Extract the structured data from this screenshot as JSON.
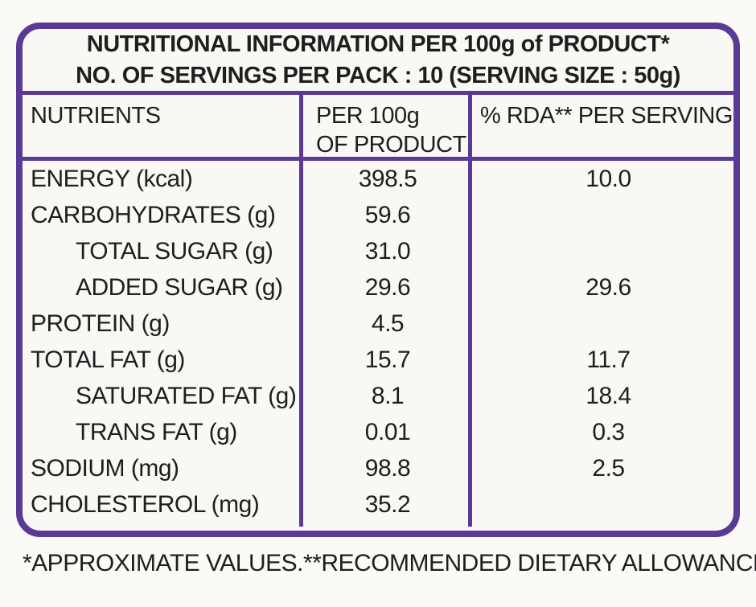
{
  "colors": {
    "border_purple": "#5B3A96",
    "text": "#1E1E1E",
    "background": "#FBFAF7"
  },
  "title": {
    "line1": "NUTRITIONAL INFORMATION PER 100g of PRODUCT*",
    "line2": "NO. OF SERVINGS PER PACK : 10 (SERVING SIZE : 50g)"
  },
  "columns": {
    "nutrients": "NUTRIENTS",
    "per_100g_line1": "PER 100g",
    "per_100g_line2": "OF PRODUCT",
    "rda_per_serving": "% RDA** PER SERVING"
  },
  "rows": [
    {
      "nutrient": "ENERGY (kcal)",
      "per_100g": "398.5",
      "rda_per_serving": "10.0"
    },
    {
      "nutrient": "CARBOHYDRATES (g)",
      "per_100g": "59.6",
      "rda_per_serving": ""
    },
    {
      "nutrient": "TOTAL SUGAR (g)",
      "per_100g": "31.0",
      "rda_per_serving": ""
    },
    {
      "nutrient": "ADDED SUGAR (g)",
      "per_100g": "29.6",
      "rda_per_serving": "29.6"
    },
    {
      "nutrient": "PROTEIN (g)",
      "per_100g": "4.5",
      "rda_per_serving": ""
    },
    {
      "nutrient": "TOTAL FAT (g)",
      "per_100g": "15.7",
      "rda_per_serving": "11.7"
    },
    {
      "nutrient": "SATURATED FAT (g)",
      "per_100g": "8.1",
      "rda_per_serving": "18.4"
    },
    {
      "nutrient": "TRANS FAT (g)",
      "per_100g": "0.01",
      "rda_per_serving": "0.3"
    },
    {
      "nutrient": "SODIUM (mg)",
      "per_100g": "98.8",
      "rda_per_serving": "2.5"
    },
    {
      "nutrient": "CHOLESTEROL (mg)",
      "per_100g": "35.2",
      "rda_per_serving": ""
    }
  ],
  "footnote": {
    "left": "*APPROXIMATE VALUES.",
    "right": "**RECOMMENDED DIETARY ALLOWANCE."
  }
}
